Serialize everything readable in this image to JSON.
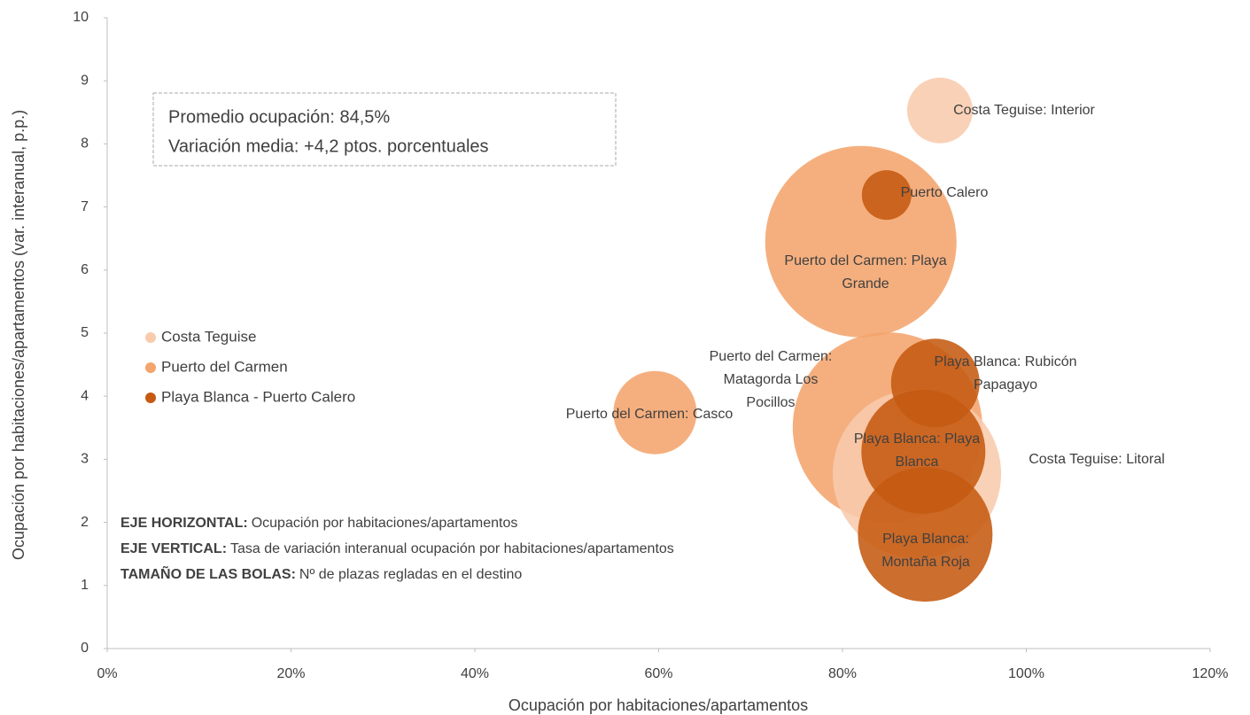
{
  "chart_data": {
    "type": "bubble",
    "xlabel": "Ocupación por habitaciones/apartamentos",
    "ylabel": "Ocupación por habitaciones/apartamentos (var. interanual, p.p.)",
    "xlim": [
      0,
      120
    ],
    "xticks": [
      {
        "value": 0,
        "label": "0%"
      },
      {
        "value": 20,
        "label": "20%"
      },
      {
        "value": 40,
        "label": "40%"
      },
      {
        "value": 60,
        "label": "60%"
      },
      {
        "value": 80,
        "label": "80%"
      },
      {
        "value": 100,
        "label": "100%"
      },
      {
        "value": 120,
        "label": "120%"
      }
    ],
    "ylim": [
      0,
      10
    ],
    "yticks": [
      0,
      1,
      2,
      3,
      4,
      5,
      6,
      7,
      8,
      9,
      10
    ],
    "grid": false,
    "legend": "left",
    "series": [
      {
        "name": "Costa Teguise",
        "color": "#f8cbad",
        "labels": [
          "Costa Teguise: Interior",
          "Costa Teguise: Litoral"
        ],
        "x": [
          90.6,
          88.1
        ],
        "values": [
          8.53,
          2.77
        ],
        "sizes": [
          1370,
          9025
        ]
      },
      {
        "name": "Puerto del Carmen",
        "color": "#f4a46c",
        "labels": [
          "Puerto del Carmen: Playa Grande",
          "Puerto del Carmen: Casco",
          "Puerto del Carmen: Matagorda Los Pocillos"
        ],
        "x": [
          82.0,
          59.6,
          84.9
        ],
        "values": [
          6.45,
          3.74,
          3.51
        ],
        "sizes": [
          11664,
          2209,
          11449
        ]
      },
      {
        "name": "Playa Blanca - Puerto Calero",
        "color": "#c55a11",
        "labels": [
          "Puerto Calero",
          "Playa Blanca: Rubicón Papagayo",
          "Playa Blanca: Playa Blanca",
          "Playa Blanca: Montaña Roja"
        ],
        "x": [
          84.8,
          90.1,
          88.8,
          89.0
        ],
        "values": [
          7.19,
          4.21,
          3.12,
          1.81
        ],
        "sizes": [
          784,
          2500,
          4900,
          5776
        ]
      }
    ],
    "annotation": [
      "Promedio ocupación: 84,5%",
      "Variación media: +4,2 ptos. porcentuales"
    ],
    "notes": [
      {
        "label": "EJE HORIZONTAL:",
        "text": "Ocupación por habitaciones/apartamentos"
      },
      {
        "label": "EJE VERTICAL:",
        "text": "Tasa de variación interanual ocupación por habitaciones/apartamentos"
      },
      {
        "label": "TAMAÑO DE LAS BOLAS:",
        "text": "Nº de plazas regladas en el destino"
      }
    ]
  }
}
